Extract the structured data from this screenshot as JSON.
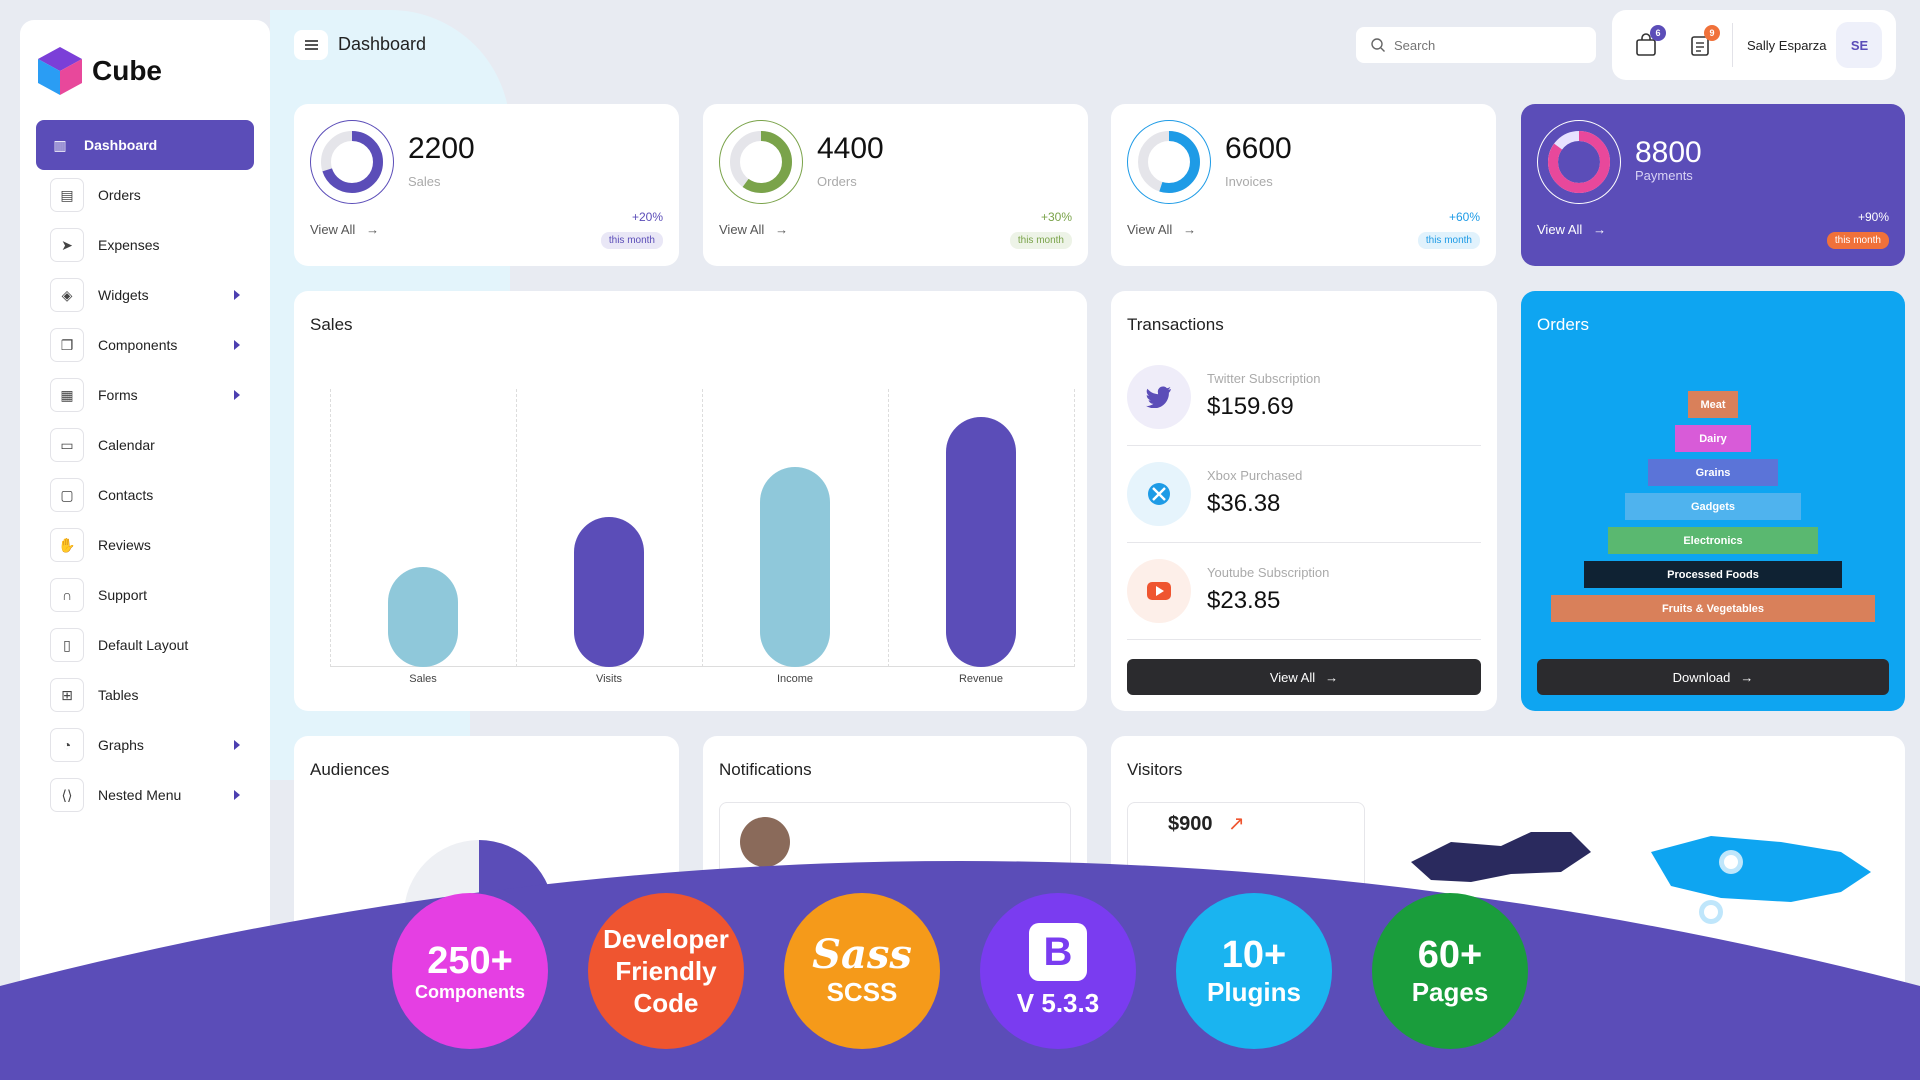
{
  "brand": {
    "name": "Cube"
  },
  "header": {
    "title": "Dashboard",
    "search_placeholder": "Search",
    "cart_badge": "6",
    "notes_badge": "9",
    "user_name": "Sally Esparza",
    "user_initials": "SE"
  },
  "sidebar": {
    "items": [
      {
        "label": "Dashboard",
        "icon": "bar-chart-icon"
      },
      {
        "label": "Orders",
        "icon": "archive-icon"
      },
      {
        "label": "Expenses",
        "icon": "send-icon"
      },
      {
        "label": "Widgets",
        "icon": "cube-icon"
      },
      {
        "label": "Components",
        "icon": "copy-icon"
      },
      {
        "label": "Forms",
        "icon": "grid-icon"
      },
      {
        "label": "Calendar",
        "icon": "calendar-icon"
      },
      {
        "label": "Contacts",
        "icon": "folder-icon"
      },
      {
        "label": "Reviews",
        "icon": "hand-icon"
      },
      {
        "label": "Support",
        "icon": "headphones-icon"
      },
      {
        "label": "Default Layout",
        "icon": "layout-icon"
      },
      {
        "label": "Tables",
        "icon": "table-icon"
      },
      {
        "label": "Graphs",
        "icon": "pie-icon"
      },
      {
        "label": "Nested Menu",
        "icon": "code-icon"
      }
    ]
  },
  "stats": [
    {
      "value": "2200",
      "label": "Sales",
      "view": "View All",
      "pct": "+20%",
      "pill": "this month",
      "color": "#5b4db8"
    },
    {
      "value": "4400",
      "label": "Orders",
      "view": "View All",
      "pct": "+30%",
      "pill": "this month",
      "color": "#7aa34a"
    },
    {
      "value": "6600",
      "label": "Invoices",
      "view": "View All",
      "pct": "+60%",
      "pill": "this month",
      "color": "#1e9be6"
    },
    {
      "value": "8800",
      "label": "Payments",
      "view": "View All",
      "pct": "+90%",
      "pill": "this month",
      "color": "#f0713a"
    }
  ],
  "sales": {
    "title": "Sales",
    "chart_data": {
      "type": "bar",
      "categories": [
        "Sales",
        "Visits",
        "Income",
        "Revenue"
      ],
      "values": [
        40,
        60,
        80,
        100
      ],
      "colors": [
        "#8fc8da",
        "#5b4db8",
        "#8fc8da",
        "#5b4db8"
      ]
    }
  },
  "transactions": {
    "title": "Transactions",
    "items": [
      {
        "label": "Twitter Subscription",
        "amount": "$159.69",
        "icon": "twitter-icon"
      },
      {
        "label": "Xbox Purchased",
        "amount": "$36.38",
        "icon": "xbox-icon"
      },
      {
        "label": "Youtube Subscription",
        "amount": "$23.85",
        "icon": "youtube-icon"
      }
    ],
    "button": "View All"
  },
  "orders": {
    "title": "Orders",
    "tiers": [
      "Meat",
      "Dairy",
      "Grains",
      "Gadgets",
      "Electronics",
      "Processed Foods",
      "Fruits & Vegetables"
    ],
    "colors": [
      "#d9805a",
      "#d85bd8",
      "#5b74d8",
      "#4fb3ee",
      "#5ab870",
      "#0f2233",
      "#d9805a"
    ],
    "button": "Download"
  },
  "audiences": {
    "title": "Audiences"
  },
  "notifications": {
    "title": "Notifications"
  },
  "visitors": {
    "title": "Visitors",
    "amount": "$900"
  },
  "features": [
    {
      "top": "250+",
      "bottom": "Components",
      "color": "#e53fe3"
    },
    {
      "top": "Developer Friendly Code",
      "bottom": "",
      "color": "#ef5530"
    },
    {
      "top": "Sass",
      "bottom": "SCSS",
      "color": "#f59a1a"
    },
    {
      "top": "B",
      "bottom": "V 5.3.3",
      "color": "#7a3cf0"
    },
    {
      "top": "10+",
      "bottom": "Plugins",
      "color": "#1ab4f0"
    },
    {
      "top": "60+",
      "bottom": "Pages",
      "color": "#1a9d3c"
    }
  ]
}
